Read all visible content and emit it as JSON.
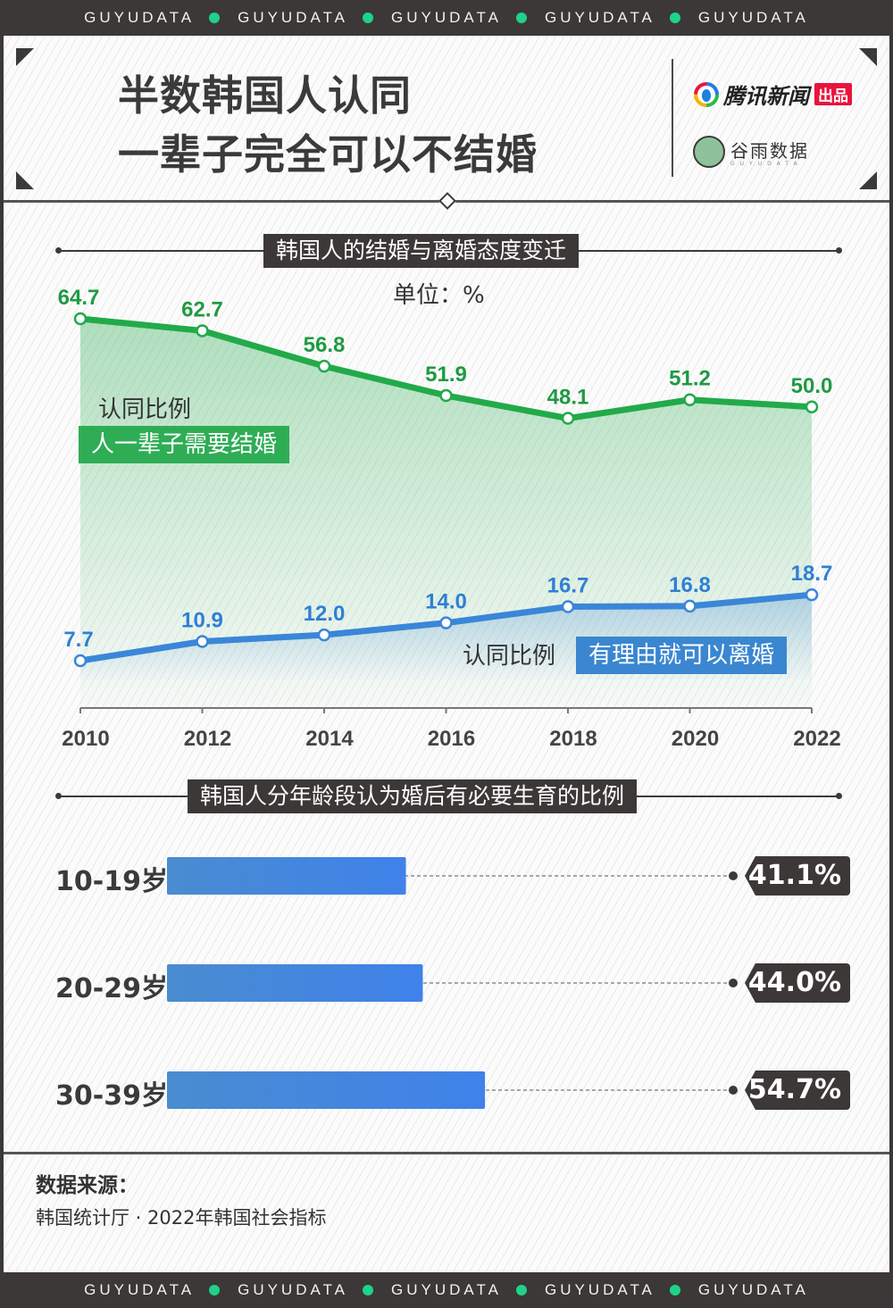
{
  "band": {
    "words": [
      "GUYUDATA",
      "GUYUDATA",
      "GUYUDATA",
      "GUYUDATA",
      "GUYUDATA"
    ],
    "dot_color": "#1fd28a"
  },
  "header": {
    "title_line1": "半数韩国人认同",
    "title_line2": "一辈子完全可以不结婚",
    "logo_tencent": "腾讯新闻",
    "logo_tencent_badge": "出品",
    "logo_guyu_cn": "谷雨数据",
    "logo_guyu_en": "GUYUDATA"
  },
  "section1": {
    "title": "韩国人的结婚与离婚态度变迁",
    "unit": "单位：%"
  },
  "section2": {
    "title": "韩国人分年龄段认为婚后有必要生育的比例"
  },
  "source": {
    "label": "数据来源：",
    "text": "韩国统计厅 · 2022年韩国社会指标"
  },
  "colors": {
    "green": "#22aa4a",
    "green_label": "#1f9a44",
    "blue": "#3a86d8",
    "blue_label": "#2f7fd4",
    "dark": "#3b3837"
  },
  "chart_data": [
    {
      "type": "line",
      "title": "韩国人的结婚与离婚态度变迁",
      "unit": "%",
      "x": [
        "2010",
        "2012",
        "2014",
        "2016",
        "2018",
        "2020",
        "2022"
      ],
      "ylim": [
        0,
        70
      ],
      "grid": false,
      "series": [
        {
          "name": "认同比例 人一辈子需要结婚",
          "caption": "认同比例",
          "label": "人一辈子需要结婚",
          "color": "#22aa4a",
          "values": [
            64.7,
            62.7,
            56.8,
            51.9,
            48.1,
            51.2,
            50.0
          ],
          "value_labels": [
            "64.7",
            "62.7",
            "56.8",
            "51.9",
            "48.1",
            "51.2",
            "50.0"
          ]
        },
        {
          "name": "认同比例 有理由就可以离婚",
          "caption": "认同比例",
          "label": "有理由就可以离婚",
          "color": "#3a86d8",
          "values": [
            7.7,
            10.9,
            12.0,
            14.0,
            16.7,
            16.8,
            18.7
          ],
          "value_labels": [
            "7.7",
            "10.9",
            "12.0",
            "14.0",
            "16.7",
            "16.8",
            "18.7"
          ]
        }
      ]
    },
    {
      "type": "bar",
      "orientation": "horizontal",
      "title": "韩国人分年龄段认为婚后有必要生育的比例",
      "categories": [
        "10-19岁",
        "20-29岁",
        "30-39岁"
      ],
      "values": [
        41.1,
        44.0,
        54.7
      ],
      "value_labels": [
        "41.1%",
        "44.0%",
        "54.7%"
      ],
      "xlim": [
        0,
        100
      ]
    }
  ]
}
